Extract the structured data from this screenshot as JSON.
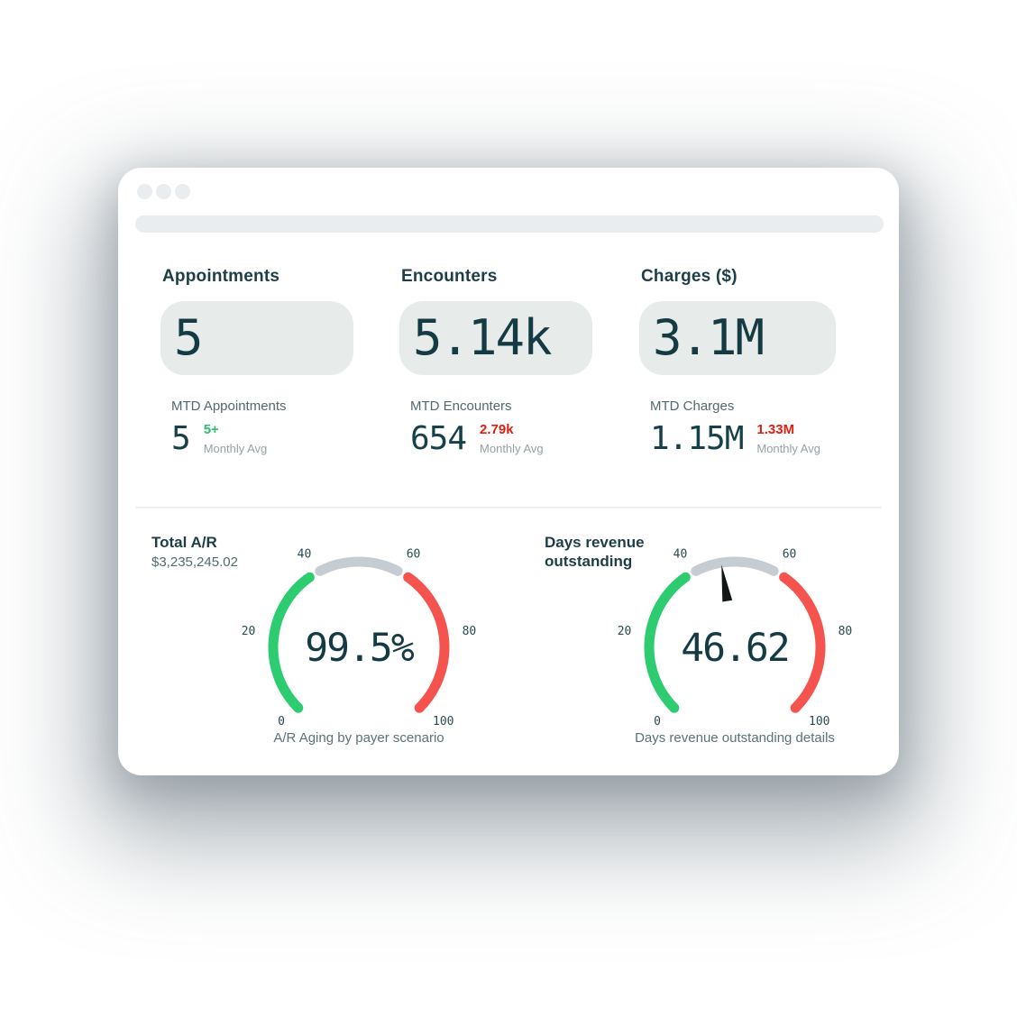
{
  "window": {
    "dot_count": 3
  },
  "kpi_section": {
    "cards": [
      {
        "title": "Appointments",
        "value": "5",
        "mtd_label": "MTD Appointments",
        "mtd_value": "5",
        "avg_value": "5+",
        "avg_trend": "up",
        "avg_label": "Monthly Avg"
      },
      {
        "title": "Encounters",
        "value": "5.14k",
        "mtd_label": "MTD Encounters",
        "mtd_value": "654",
        "avg_value": "2.79k",
        "avg_trend": "down",
        "avg_label": "Monthly Avg"
      },
      {
        "title": "Charges ($)",
        "value": "3.1M",
        "mtd_label": "MTD Charges",
        "mtd_value": "1.15M",
        "avg_value": "1.33M",
        "avg_trend": "down",
        "avg_label": "Monthly Avg"
      }
    ]
  },
  "chart_data": [
    {
      "type": "gauge",
      "title": "Total A/R",
      "subtitle": "$3,235,245.02",
      "value": 99.5,
      "display_value": "99.5%",
      "caption": "A/R Aging by payer scenario",
      "min": 0,
      "max": 100,
      "start_angle": 225,
      "end_angle": -45,
      "ticks": [
        0,
        20,
        40,
        60,
        80,
        100
      ],
      "segments": [
        {
          "from": 0,
          "to": 37,
          "color": "#2ecc71"
        },
        {
          "from": 40,
          "to": 60,
          "color": "#c6cdd2"
        },
        {
          "from": 63,
          "to": 100,
          "color": "#f4534e"
        }
      ],
      "needle": false
    },
    {
      "type": "gauge",
      "title": "Days revenue outstanding",
      "subtitle": "",
      "value": 46.62,
      "display_value": "46.62",
      "caption": "Days revenue outstanding details",
      "min": 0,
      "max": 100,
      "start_angle": 225,
      "end_angle": -45,
      "ticks": [
        0,
        20,
        40,
        60,
        80,
        100
      ],
      "segments": [
        {
          "from": 0,
          "to": 37,
          "color": "#2ecc71"
        },
        {
          "from": 40,
          "to": 60,
          "color": "#c6cdd2"
        },
        {
          "from": 63,
          "to": 100,
          "color": "#f4534e"
        }
      ],
      "needle": true,
      "needle_color": "#121617"
    }
  ],
  "colors": {
    "positive": "#2fbe6b",
    "negative": "#e01e10",
    "gauge_green": "#2ecc71",
    "gauge_gray": "#c6cdd2",
    "gauge_red": "#f4534e",
    "dark_text": "#143b43",
    "pill_bg": "#e7eceb"
  }
}
